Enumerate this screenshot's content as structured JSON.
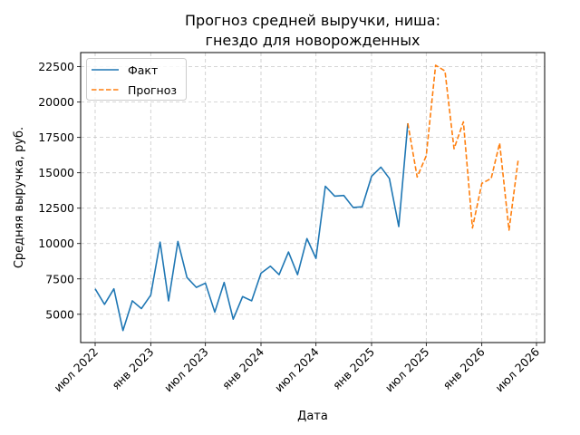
{
  "chart_data": {
    "type": "line",
    "title_lines": [
      "Прогноз средней выручки, ниша:",
      "гнездо для новорожденных"
    ],
    "xlabel": "Дата",
    "ylabel": "Средняя выручка, руб.",
    "ylim": [
      3000,
      23500
    ],
    "yticks": [
      5000,
      7500,
      10000,
      12500,
      15000,
      17500,
      20000,
      22500
    ],
    "xlim": [
      "2022-05-14",
      "2026-07-28"
    ],
    "xticks": [
      {
        "date": "2022-07-01",
        "label": "июл 2022"
      },
      {
        "date": "2023-01-01",
        "label": "янв 2023"
      },
      {
        "date": "2023-07-01",
        "label": "июл 2023"
      },
      {
        "date": "2024-01-01",
        "label": "янв 2024"
      },
      {
        "date": "2024-07-01",
        "label": "июл 2024"
      },
      {
        "date": "2025-01-01",
        "label": "янв 2025"
      },
      {
        "date": "2025-07-01",
        "label": "июл 2025"
      },
      {
        "date": "2026-01-01",
        "label": "янв 2026"
      },
      {
        "date": "2026-07-01",
        "label": "июл 2026"
      }
    ],
    "grid": true,
    "legend_position": "top-left",
    "series": [
      {
        "name": "Факт",
        "color": "#1f77b4",
        "style": "solid",
        "points": [
          {
            "x": "2022-07-01",
            "y": 6800
          },
          {
            "x": "2022-08-01",
            "y": 5700
          },
          {
            "x": "2022-09-01",
            "y": 6800
          },
          {
            "x": "2022-10-01",
            "y": 3850
          },
          {
            "x": "2022-11-01",
            "y": 5950
          },
          {
            "x": "2022-12-01",
            "y": 5400
          },
          {
            "x": "2023-01-01",
            "y": 6350
          },
          {
            "x": "2023-02-01",
            "y": 10100
          },
          {
            "x": "2023-03-01",
            "y": 5950
          },
          {
            "x": "2023-04-01",
            "y": 10150
          },
          {
            "x": "2023-05-01",
            "y": 7600
          },
          {
            "x": "2023-06-01",
            "y": 6900
          },
          {
            "x": "2023-07-01",
            "y": 7200
          },
          {
            "x": "2023-08-01",
            "y": 5150
          },
          {
            "x": "2023-09-01",
            "y": 7250
          },
          {
            "x": "2023-10-01",
            "y": 4650
          },
          {
            "x": "2023-11-01",
            "y": 6250
          },
          {
            "x": "2023-12-01",
            "y": 5950
          },
          {
            "x": "2024-01-01",
            "y": 7900
          },
          {
            "x": "2024-02-01",
            "y": 8400
          },
          {
            "x": "2024-03-01",
            "y": 7800
          },
          {
            "x": "2024-04-01",
            "y": 9400
          },
          {
            "x": "2024-05-01",
            "y": 7800
          },
          {
            "x": "2024-06-01",
            "y": 10350
          },
          {
            "x": "2024-07-01",
            "y": 8950
          },
          {
            "x": "2024-08-01",
            "y": 14050
          },
          {
            "x": "2024-09-01",
            "y": 13350
          },
          {
            "x": "2024-10-01",
            "y": 13400
          },
          {
            "x": "2024-11-01",
            "y": 12550
          },
          {
            "x": "2024-12-01",
            "y": 12600
          },
          {
            "x": "2025-01-01",
            "y": 14750
          },
          {
            "x": "2025-02-01",
            "y": 15400
          },
          {
            "x": "2025-03-01",
            "y": 14600
          },
          {
            "x": "2025-04-01",
            "y": 11200
          },
          {
            "x": "2025-05-01",
            "y": 18500
          }
        ]
      },
      {
        "name": "Прогноз",
        "color": "#ff7f0e",
        "style": "dashed",
        "points": [
          {
            "x": "2025-05-01",
            "y": 18500
          },
          {
            "x": "2025-06-01",
            "y": 14700
          },
          {
            "x": "2025-07-01",
            "y": 16200
          },
          {
            "x": "2025-08-01",
            "y": 22600
          },
          {
            "x": "2025-09-01",
            "y": 22200
          },
          {
            "x": "2025-10-01",
            "y": 16700
          },
          {
            "x": "2025-11-01",
            "y": 18600
          },
          {
            "x": "2025-12-01",
            "y": 11100
          },
          {
            "x": "2026-01-01",
            "y": 14250
          },
          {
            "x": "2026-02-01",
            "y": 14600
          },
          {
            "x": "2026-03-01",
            "y": 17100
          },
          {
            "x": "2026-04-01",
            "y": 10950
          },
          {
            "x": "2026-05-01",
            "y": 15850
          }
        ]
      }
    ]
  }
}
